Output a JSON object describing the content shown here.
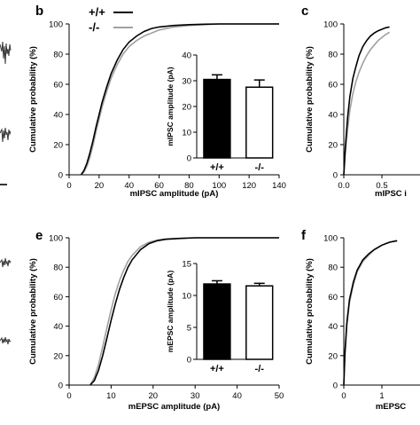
{
  "panel_labels": {
    "b": "b",
    "c": "c",
    "e": "e",
    "f": "f"
  },
  "legend": {
    "wt": "+/+",
    "ko": "-/-",
    "wt_color": "#000000",
    "ko_color": "#a0a0a0"
  },
  "chart_data": [
    {
      "id": "b",
      "type": "line",
      "xlabel": "mIPSC amplitude (pA)",
      "ylabel": "Cumulative probability (%)",
      "xlim": [
        0,
        140
      ],
      "ylim": [
        0,
        100
      ],
      "xticks": [
        0,
        20,
        40,
        60,
        80,
        100,
        120,
        140
      ],
      "yticks": [
        0,
        20,
        40,
        60,
        80,
        100
      ],
      "series": [
        {
          "name": "+/+",
          "color": "#000000",
          "x": [
            8,
            10,
            12,
            14,
            16,
            18,
            20,
            22,
            25,
            28,
            32,
            36,
            40,
            45,
            50,
            55,
            60,
            70,
            80,
            90,
            100,
            110,
            120,
            130,
            140
          ],
          "y": [
            0,
            3,
            8,
            15,
            23,
            32,
            40,
            48,
            58,
            67,
            76,
            83,
            88,
            92,
            95,
            97,
            98,
            99,
            99.5,
            99.8,
            100,
            100,
            100,
            100,
            100
          ]
        },
        {
          "name": "-/-",
          "color": "#a0a0a0",
          "x": [
            8,
            10,
            12,
            14,
            16,
            18,
            20,
            22,
            25,
            28,
            32,
            36,
            40,
            45,
            50,
            55,
            60,
            70,
            80,
            90,
            100,
            110,
            120,
            130,
            140
          ],
          "y": [
            0,
            2,
            6,
            12,
            20,
            29,
            37,
            45,
            55,
            64,
            73,
            80,
            85,
            89,
            92,
            94,
            96,
            98,
            99,
            99.5,
            100,
            100,
            100,
            100,
            100
          ]
        }
      ]
    },
    {
      "id": "b-inset",
      "type": "bar",
      "ylabel": "mIPSC amplitude (pA)",
      "ylim": [
        0,
        40
      ],
      "yticks": [
        0,
        10,
        20,
        30,
        40
      ],
      "categories": [
        "+/+",
        "-/-"
      ],
      "values": [
        30.5,
        27.5
      ],
      "errors": [
        1.8,
        2.8
      ],
      "colors": [
        "#000000",
        "#ffffff"
      ]
    },
    {
      "id": "c",
      "type": "line",
      "xlabel": "mIPSC i",
      "ylabel": "Cumulative probability (%)",
      "xlim": [
        0,
        1
      ],
      "ylim": [
        0,
        100
      ],
      "xticks": [
        "0.0",
        "0.5"
      ],
      "yticks": [
        0,
        20,
        40,
        60,
        80,
        100
      ],
      "series": [
        {
          "name": "+/+",
          "color": "#000000",
          "x": [
            0,
            0.02,
            0.05,
            0.08,
            0.12,
            0.16,
            0.2,
            0.25,
            0.3,
            0.35,
            0.4,
            0.45,
            0.5,
            0.55,
            0.6
          ],
          "y": [
            0,
            18,
            38,
            52,
            64,
            72,
            79,
            85,
            89,
            92,
            94,
            95.5,
            96.5,
            97.5,
            98
          ]
        },
        {
          "name": "-/-",
          "color": "#a0a0a0",
          "x": [
            0,
            0.02,
            0.05,
            0.08,
            0.12,
            0.16,
            0.2,
            0.25,
            0.3,
            0.35,
            0.4,
            0.45,
            0.5,
            0.55,
            0.6
          ],
          "y": [
            0,
            14,
            30,
            43,
            54,
            62,
            68,
            74,
            79,
            83,
            86,
            89,
            91,
            93,
            94.5
          ]
        }
      ]
    },
    {
      "id": "e",
      "type": "line",
      "xlabel": "mEPSC amplitude (pA)",
      "ylabel": "Cumulative probability (%)",
      "xlim": [
        0,
        50
      ],
      "ylim": [
        0,
        100
      ],
      "xticks": [
        0,
        10,
        20,
        30,
        40,
        50
      ],
      "yticks": [
        0,
        20,
        40,
        60,
        80,
        100
      ],
      "series": [
        {
          "name": "+/+",
          "color": "#000000",
          "x": [
            5,
            6,
            7,
            8,
            9,
            10,
            11,
            12,
            13,
            14,
            15,
            17,
            19,
            21,
            23,
            26,
            30,
            35,
            40,
            45,
            50
          ],
          "y": [
            0,
            3,
            10,
            20,
            32,
            44,
            55,
            65,
            73,
            80,
            85,
            92,
            96,
            98,
            99,
            99.5,
            100,
            100,
            100,
            100,
            100
          ]
        },
        {
          "name": "-/-",
          "color": "#a0a0a0",
          "x": [
            5,
            6,
            7,
            8,
            9,
            10,
            11,
            12,
            13,
            14,
            15,
            17,
            19,
            21,
            23,
            26,
            30,
            35,
            40,
            45,
            50
          ],
          "y": [
            0,
            5,
            14,
            26,
            39,
            51,
            62,
            71,
            78,
            84,
            88,
            94,
            97,
            98.5,
            99.2,
            99.6,
            100,
            100,
            100,
            100,
            100
          ]
        }
      ]
    },
    {
      "id": "e-inset",
      "type": "bar",
      "ylabel": "mEPSC amplitude (pA)",
      "ylim": [
        0,
        15
      ],
      "yticks": [
        0,
        5,
        10,
        15
      ],
      "categories": [
        "+/+",
        "-/-"
      ],
      "values": [
        11.8,
        11.5
      ],
      "errors": [
        0.5,
        0.4
      ],
      "colors": [
        "#000000",
        "#ffffff"
      ]
    },
    {
      "id": "f",
      "type": "line",
      "xlabel": "mEPSC",
      "ylabel": "Cumulative probability (%)",
      "xlim": [
        0,
        2
      ],
      "ylim": [
        0,
        100
      ],
      "xticks": [
        "0",
        "1"
      ],
      "yticks": [
        0,
        20,
        40,
        60,
        80,
        100
      ],
      "series": [
        {
          "name": "+/+",
          "color": "#000000",
          "x": [
            0,
            0.03,
            0.08,
            0.15,
            0.25,
            0.35,
            0.5,
            0.65,
            0.8,
            1.0,
            1.2,
            1.4
          ],
          "y": [
            0,
            22,
            42,
            58,
            70,
            78,
            85,
            89,
            92,
            95,
            97,
            98
          ]
        },
        {
          "name": "-/-",
          "color": "#a0a0a0",
          "x": [
            0,
            0.03,
            0.08,
            0.15,
            0.25,
            0.35,
            0.5,
            0.65,
            0.8,
            1.0,
            1.2,
            1.4
          ],
          "y": [
            0,
            20,
            40,
            56,
            68,
            77,
            84,
            88,
            92,
            95,
            97,
            98
          ]
        }
      ]
    }
  ]
}
